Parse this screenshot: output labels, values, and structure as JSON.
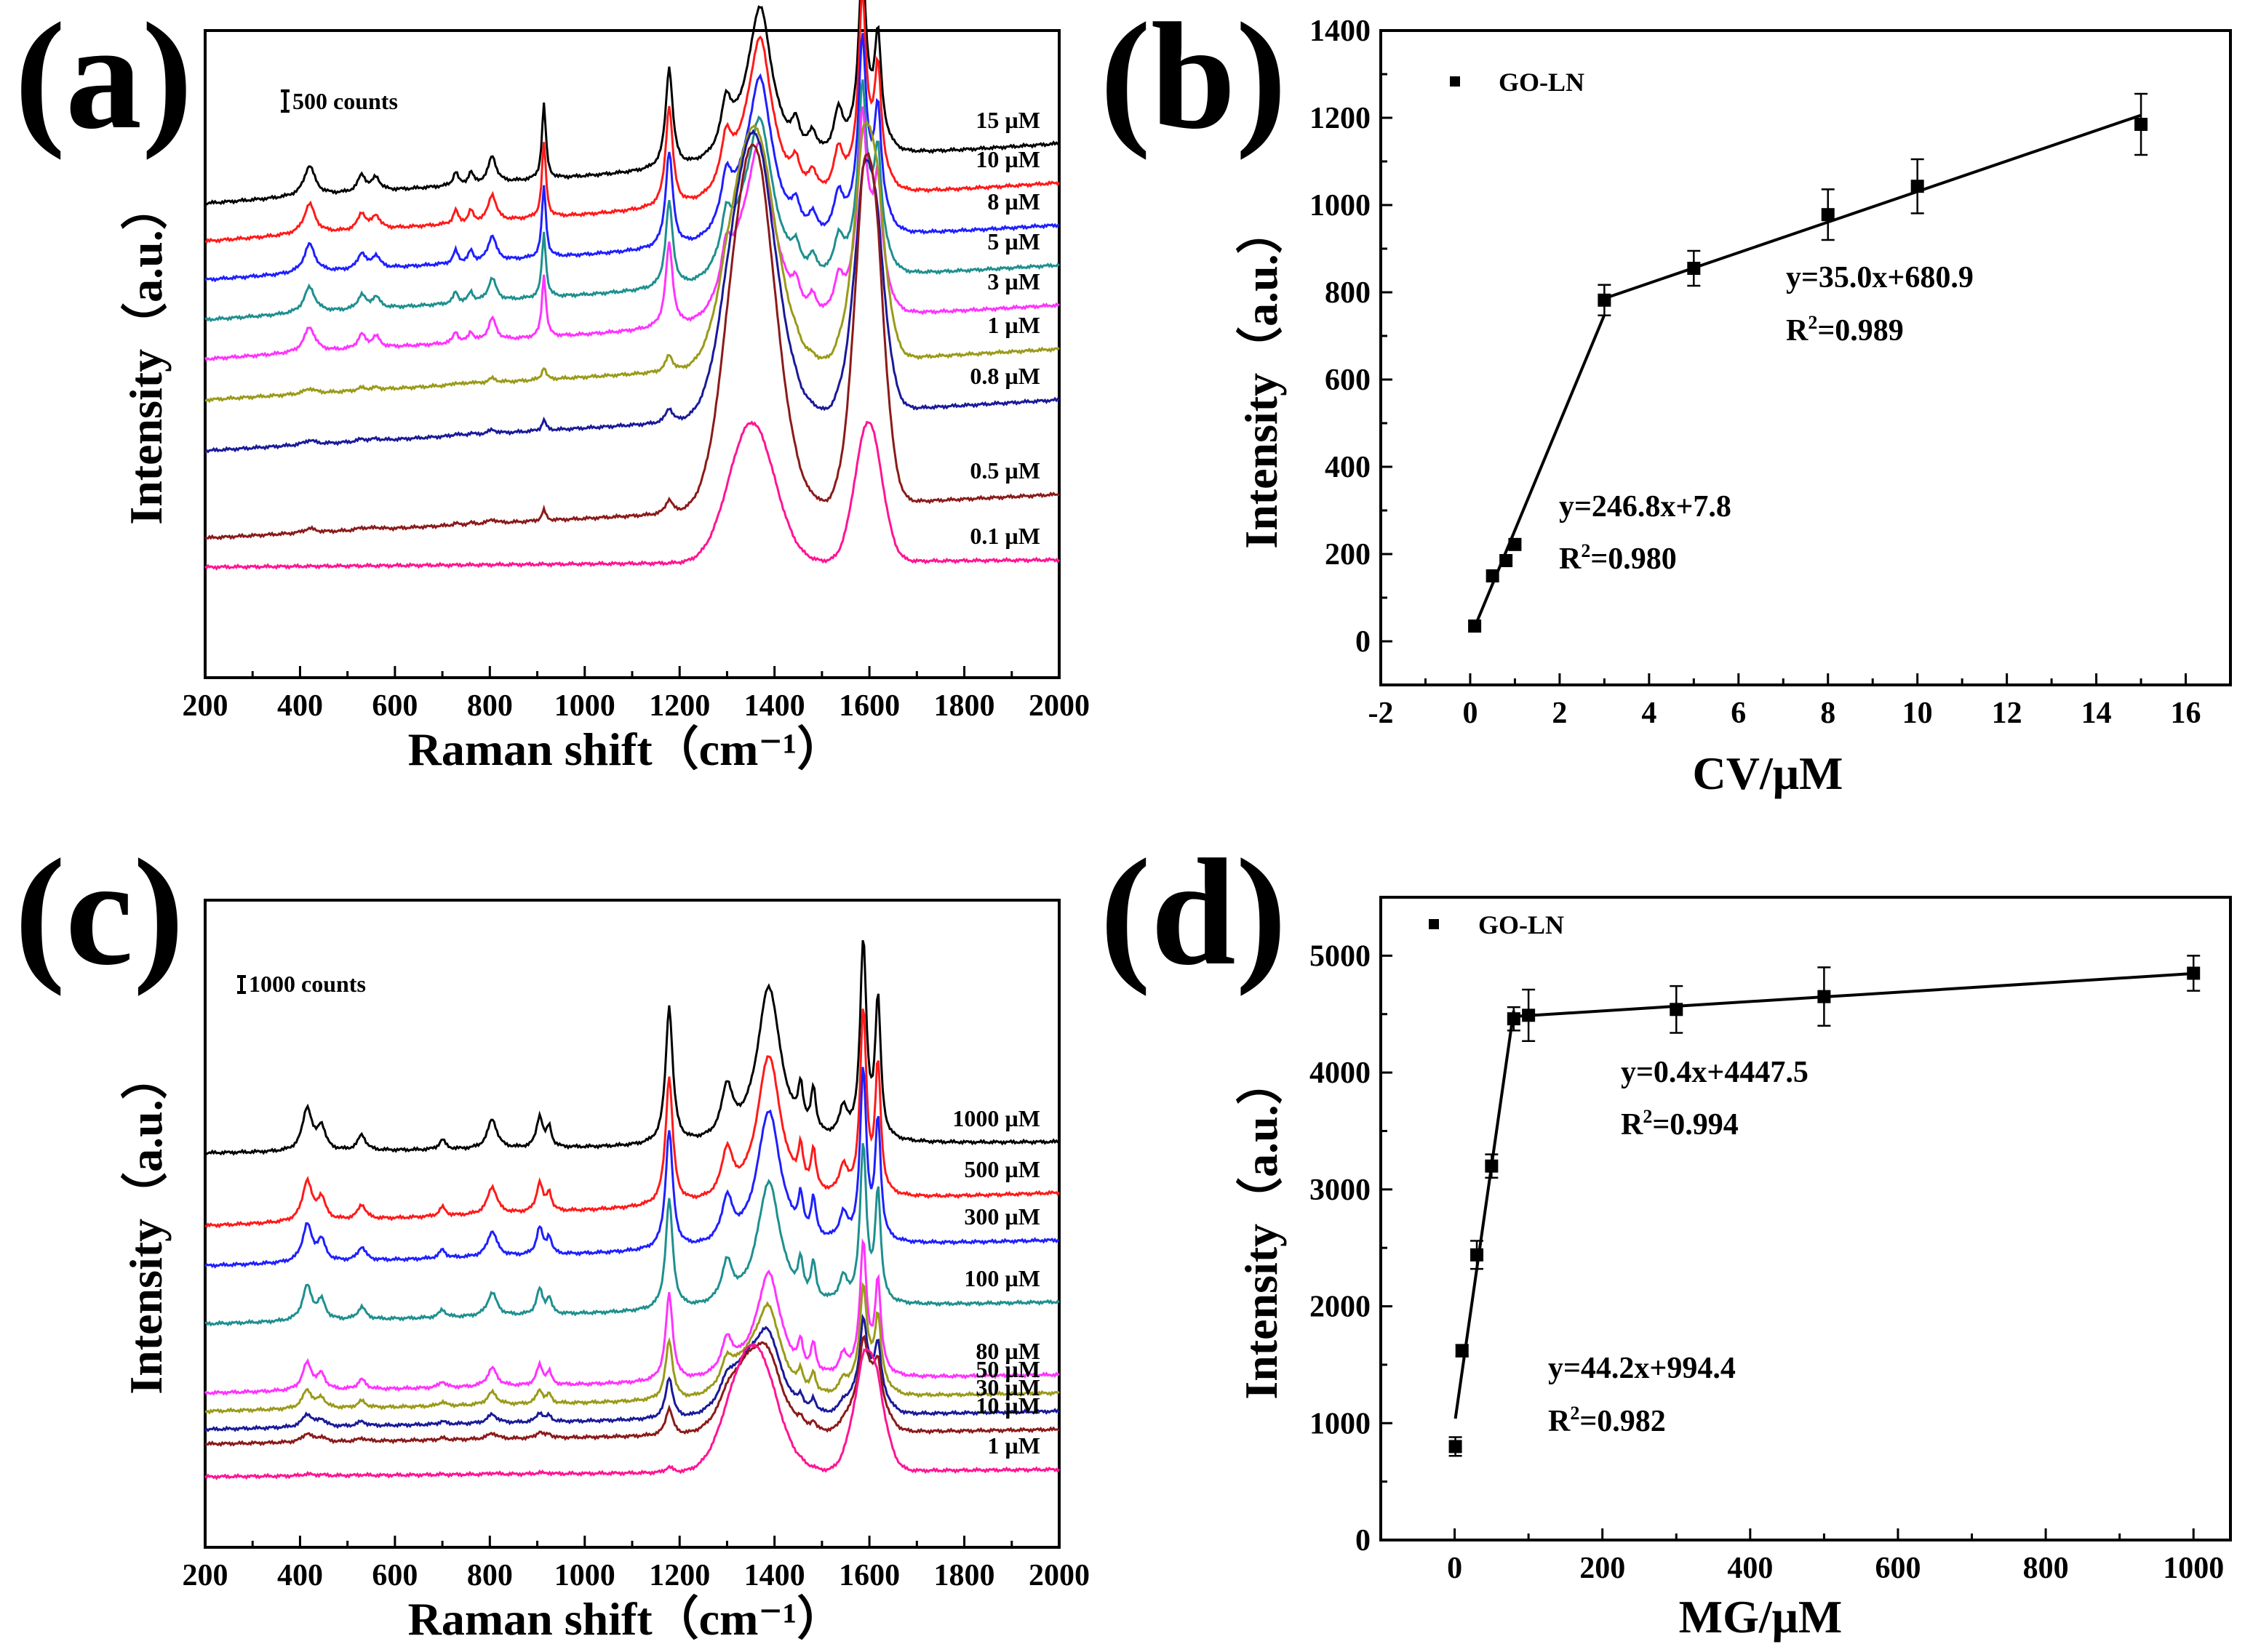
{
  "chart_data": [
    {
      "panel": "(a)",
      "type": "line",
      "xlabel": "Raman shift（cm⁻¹）",
      "ylabel": "Intensity（a.u.）",
      "xlim": [
        200,
        2000
      ],
      "xticks": [
        200,
        400,
        600,
        800,
        1000,
        1200,
        1400,
        1600,
        1800,
        2000
      ],
      "scale_bar": "500 counts",
      "peaks": [
        {
          "x": 420,
          "w": 14,
          "k": 0.18
        },
        {
          "x": 530,
          "w": 10,
          "k": 0.1
        },
        {
          "x": 560,
          "w": 10,
          "k": 0.08
        },
        {
          "x": 728,
          "w": 6,
          "k": 0.08
        },
        {
          "x": 760,
          "w": 6,
          "k": 0.07
        },
        {
          "x": 805,
          "w": 10,
          "k": 0.16
        },
        {
          "x": 914,
          "w": 5,
          "k": 0.45
        },
        {
          "x": 1178,
          "w": 9,
          "k": 0.6
        },
        {
          "x": 1298,
          "w": 12,
          "k": 0.25
        },
        {
          "x": 1370,
          "w": 28,
          "k": 0.75
        },
        {
          "x": 1445,
          "w": 10,
          "k": 0.15
        },
        {
          "x": 1480,
          "w": 10,
          "k": 0.12
        },
        {
          "x": 1535,
          "w": 12,
          "k": 0.25
        },
        {
          "x": 1585,
          "w": 9,
          "k": 0.95
        },
        {
          "x": 1618,
          "w": 8,
          "k": 0.55
        }
      ],
      "series": [
        {
          "name": "15 µM",
          "color": "#000000",
          "baseline": 200,
          "baseline_end": 118,
          "dye": 420,
          "go_d": 80,
          "go_g": 80
        },
        {
          "name": "10 µM",
          "color": "#ff1a1a",
          "baseline": 252,
          "baseline_end": 172,
          "dye": 420,
          "go_d": 100,
          "go_g": 100
        },
        {
          "name": "8 µM",
          "color": "#1f1fff",
          "baseline": 305,
          "baseline_end": 230,
          "dye": 400,
          "go_d": 120,
          "go_g": 120
        },
        {
          "name": "5 µM",
          "color": "#1f8f8f",
          "baseline": 360,
          "baseline_end": 285,
          "dye": 360,
          "go_d": 150,
          "go_g": 150
        },
        {
          "name": "3 µM",
          "color": "#ff33ff",
          "baseline": 414,
          "baseline_end": 340,
          "dye": 350,
          "go_d": 200,
          "go_g": 200
        },
        {
          "name": "1 µM",
          "color": "#9a9a1a",
          "baseline": 470,
          "baseline_end": 400,
          "dye": 70,
          "go_d": 560,
          "go_g": 560
        },
        {
          "name": "0.8 µM",
          "color": "#1a1a99",
          "baseline": 540,
          "baseline_end": 470,
          "dye": 60,
          "go_d": 680,
          "go_g": 600
        },
        {
          "name": "0.5 µM",
          "color": "#8b1a1a",
          "baseline": 660,
          "baseline_end": 600,
          "dye": 60,
          "go_d": 880,
          "go_g": 850
        },
        {
          "name": "0.1 µM",
          "color": "#ff1493",
          "baseline": 700,
          "baseline_end": 690,
          "dye": 0,
          "go_d": 350,
          "go_g": 350
        }
      ]
    },
    {
      "panel": "(b)",
      "type": "scatter",
      "xlabel": "CV/μM",
      "ylabel": "Intensity（a.u.）",
      "xlim": [
        -2,
        17
      ],
      "ylim": [
        -100,
        1400
      ],
      "xticks": [
        -2,
        0,
        2,
        4,
        6,
        8,
        10,
        12,
        14,
        16
      ],
      "yticks": [
        0,
        200,
        400,
        600,
        800,
        1000,
        1200,
        1400
      ],
      "legend": "GO-LN",
      "points": [
        {
          "x": 0.1,
          "y": 35,
          "err": 0
        },
        {
          "x": 0.5,
          "y": 150,
          "err": 0
        },
        {
          "x": 0.8,
          "y": 185,
          "err": 0
        },
        {
          "x": 1,
          "y": 222,
          "err": 0
        },
        {
          "x": 3,
          "y": 782,
          "err": 35
        },
        {
          "x": 5,
          "y": 855,
          "err": 40
        },
        {
          "x": 8,
          "y": 978,
          "err": 58
        },
        {
          "x": 10,
          "y": 1043,
          "err": 62
        },
        {
          "x": 15,
          "y": 1185,
          "err": 70
        }
      ],
      "fits": [
        {
          "x": [
            0.1,
            3
          ],
          "y": [
            32.5,
            748.2
          ]
        },
        {
          "x": [
            3,
            15
          ],
          "y": [
            785.9,
            1205.9
          ]
        }
      ],
      "equations": [
        {
          "eq": "y=35.0x+680.9",
          "r2": "=0.989"
        },
        {
          "eq": "y=246.8x+7.8",
          "r2": "=0.980"
        }
      ]
    },
    {
      "panel": "(c)",
      "type": "line",
      "xlabel": "Raman shift（cm⁻¹）",
      "ylabel": "Intensity（a.u.）",
      "xlim": [
        200,
        2000
      ],
      "xticks": [
        200,
        400,
        600,
        800,
        1000,
        1200,
        1400,
        1600,
        1800,
        2000
      ],
      "scale_bar": "1000 counts",
      "peaks": [
        {
          "x": 415,
          "w": 12,
          "k": 0.22
        },
        {
          "x": 445,
          "w": 10,
          "k": 0.12
        },
        {
          "x": 530,
          "w": 10,
          "k": 0.08
        },
        {
          "x": 700,
          "w": 8,
          "k": 0.05
        },
        {
          "x": 805,
          "w": 12,
          "k": 0.15
        },
        {
          "x": 905,
          "w": 8,
          "k": 0.16
        },
        {
          "x": 925,
          "w": 6,
          "k": 0.1
        },
        {
          "x": 1178,
          "w": 9,
          "k": 0.7
        },
        {
          "x": 1300,
          "w": 14,
          "k": 0.25
        },
        {
          "x": 1388,
          "w": 30,
          "k": 0.8
        },
        {
          "x": 1455,
          "w": 6,
          "k": 0.2
        },
        {
          "x": 1482,
          "w": 6,
          "k": 0.22
        },
        {
          "x": 1545,
          "w": 10,
          "k": 0.15
        },
        {
          "x": 1587,
          "w": 8,
          "k": 1.0
        },
        {
          "x": 1618,
          "w": 7,
          "k": 0.7
        }
      ],
      "series": [
        {
          "name": "1000 µM",
          "color": "#000000",
          "baseline": 310,
          "baseline_end": 295,
          "dye": 600,
          "go_d": 0,
          "go_g": 0
        },
        {
          "name": "500 µM",
          "color": "#ff1a1a",
          "baseline": 410,
          "baseline_end": 365,
          "dye": 560,
          "go_d": 0,
          "go_g": 0
        },
        {
          "name": "300 µM",
          "color": "#1f1fff",
          "baseline": 465,
          "baseline_end": 430,
          "dye": 520,
          "go_d": 0,
          "go_g": 0
        },
        {
          "name": "100 µM",
          "color": "#1f8f8f",
          "baseline": 545,
          "baseline_end": 515,
          "dye": 480,
          "go_d": 0,
          "go_g": 0
        },
        {
          "name": "80 µM",
          "color": "#ff33ff",
          "baseline": 640,
          "baseline_end": 615,
          "dye": 380,
          "go_d": 30,
          "go_g": 30
        },
        {
          "name": "50 µM",
          "color": "#9a9a1a",
          "baseline": 665,
          "baseline_end": 640,
          "dye": 260,
          "go_d": 100,
          "go_g": 80
        },
        {
          "name": "30 µM",
          "color": "#1a1a99",
          "baseline": 690,
          "baseline_end": 665,
          "dye": 180,
          "go_d": 160,
          "go_g": 120
        },
        {
          "name": "10 µM",
          "color": "#8b1a1a",
          "baseline": 710,
          "baseline_end": 690,
          "dye": 120,
          "go_d": 220,
          "go_g": 180
        },
        {
          "name": "1 µM",
          "color": "#ff1493",
          "baseline": 755,
          "baseline_end": 745,
          "dye": 25,
          "go_d": 380,
          "go_g": 360
        }
      ]
    },
    {
      "panel": "(d)",
      "type": "scatter",
      "xlabel": "MG/μM",
      "ylabel": "Intensity（a.u.）",
      "xlim": [
        -100,
        1050
      ],
      "ylim": [
        0,
        5500
      ],
      "xticks": [
        0,
        200,
        400,
        600,
        800,
        1000
      ],
      "yticks": [
        0,
        1000,
        2000,
        3000,
        4000,
        5000
      ],
      "legend": "GO-LN",
      "points": [
        {
          "x": 1,
          "y": 800,
          "err": 80
        },
        {
          "x": 10,
          "y": 1620,
          "err": 50
        },
        {
          "x": 30,
          "y": 2440,
          "err": 120
        },
        {
          "x": 50,
          "y": 3200,
          "err": 100
        },
        {
          "x": 80,
          "y": 4460,
          "err": 100
        },
        {
          "x": 100,
          "y": 4490,
          "err": 220
        },
        {
          "x": 300,
          "y": 4540,
          "err": 200
        },
        {
          "x": 500,
          "y": 4650,
          "err": 250
        },
        {
          "x": 1000,
          "y": 4850,
          "err": 150
        }
      ],
      "fits": [
        {
          "x": [
            1,
            80
          ],
          "y": [
            1038.6,
            4530.4
          ]
        },
        {
          "x": [
            80,
            1000
          ],
          "y": [
            4479.5,
            4847.5
          ]
        }
      ],
      "equations": [
        {
          "eq": "y=0.4x+4447.5",
          "r2": "=0.994"
        },
        {
          "eq": "y=44.2x+994.4",
          "r2": "=0.982"
        }
      ]
    }
  ]
}
